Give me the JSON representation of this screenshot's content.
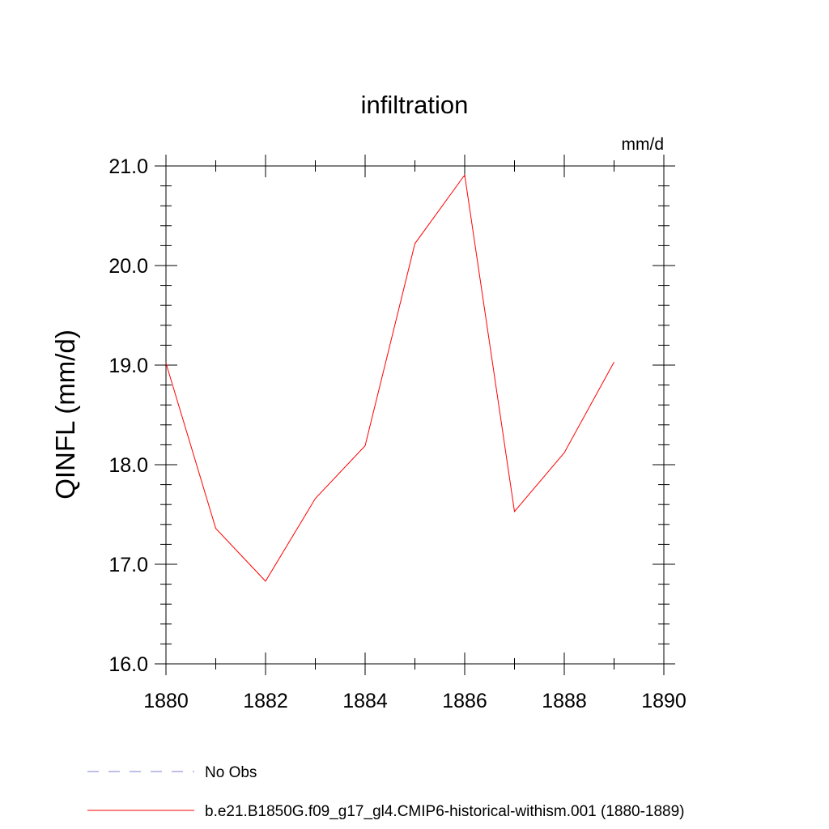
{
  "chart_data": {
    "type": "line",
    "title": "infiltration",
    "units": "mm/d",
    "ylabel": "QINFL  (mm/d)",
    "xlabel": "",
    "xlim": [
      1880,
      1890
    ],
    "ylim": [
      16.0,
      21.0
    ],
    "x_ticks": [
      1880,
      1882,
      1884,
      1886,
      1888,
      1890
    ],
    "y_ticks": [
      "16.0",
      "17.0",
      "18.0",
      "19.0",
      "20.0",
      "21.0"
    ],
    "y_minor_step": 0.2,
    "x_minor_step": 1,
    "grid": false,
    "legend_placement": "bottom",
    "series": [
      {
        "name": "b.e21.B1850G.f09_g17_gl4.CMIP6-historical-withism.001 (1880-1889)",
        "color": "#ff0000",
        "style": "solid",
        "x": [
          1880,
          1881,
          1882,
          1883,
          1884,
          1885,
          1886,
          1887,
          1888,
          1889
        ],
        "y": [
          19.02,
          17.36,
          16.83,
          17.66,
          18.19,
          20.22,
          20.91,
          17.53,
          18.12,
          19.03
        ]
      }
    ],
    "legend": [
      {
        "label": "No Obs",
        "color": "#7f7fd0",
        "style": "dashed"
      },
      {
        "label": "b.e21.B1850G.f09_g17_gl4.CMIP6-historical-withism.001 (1880-1889)",
        "color": "#ff0000",
        "style": "solid"
      }
    ]
  }
}
